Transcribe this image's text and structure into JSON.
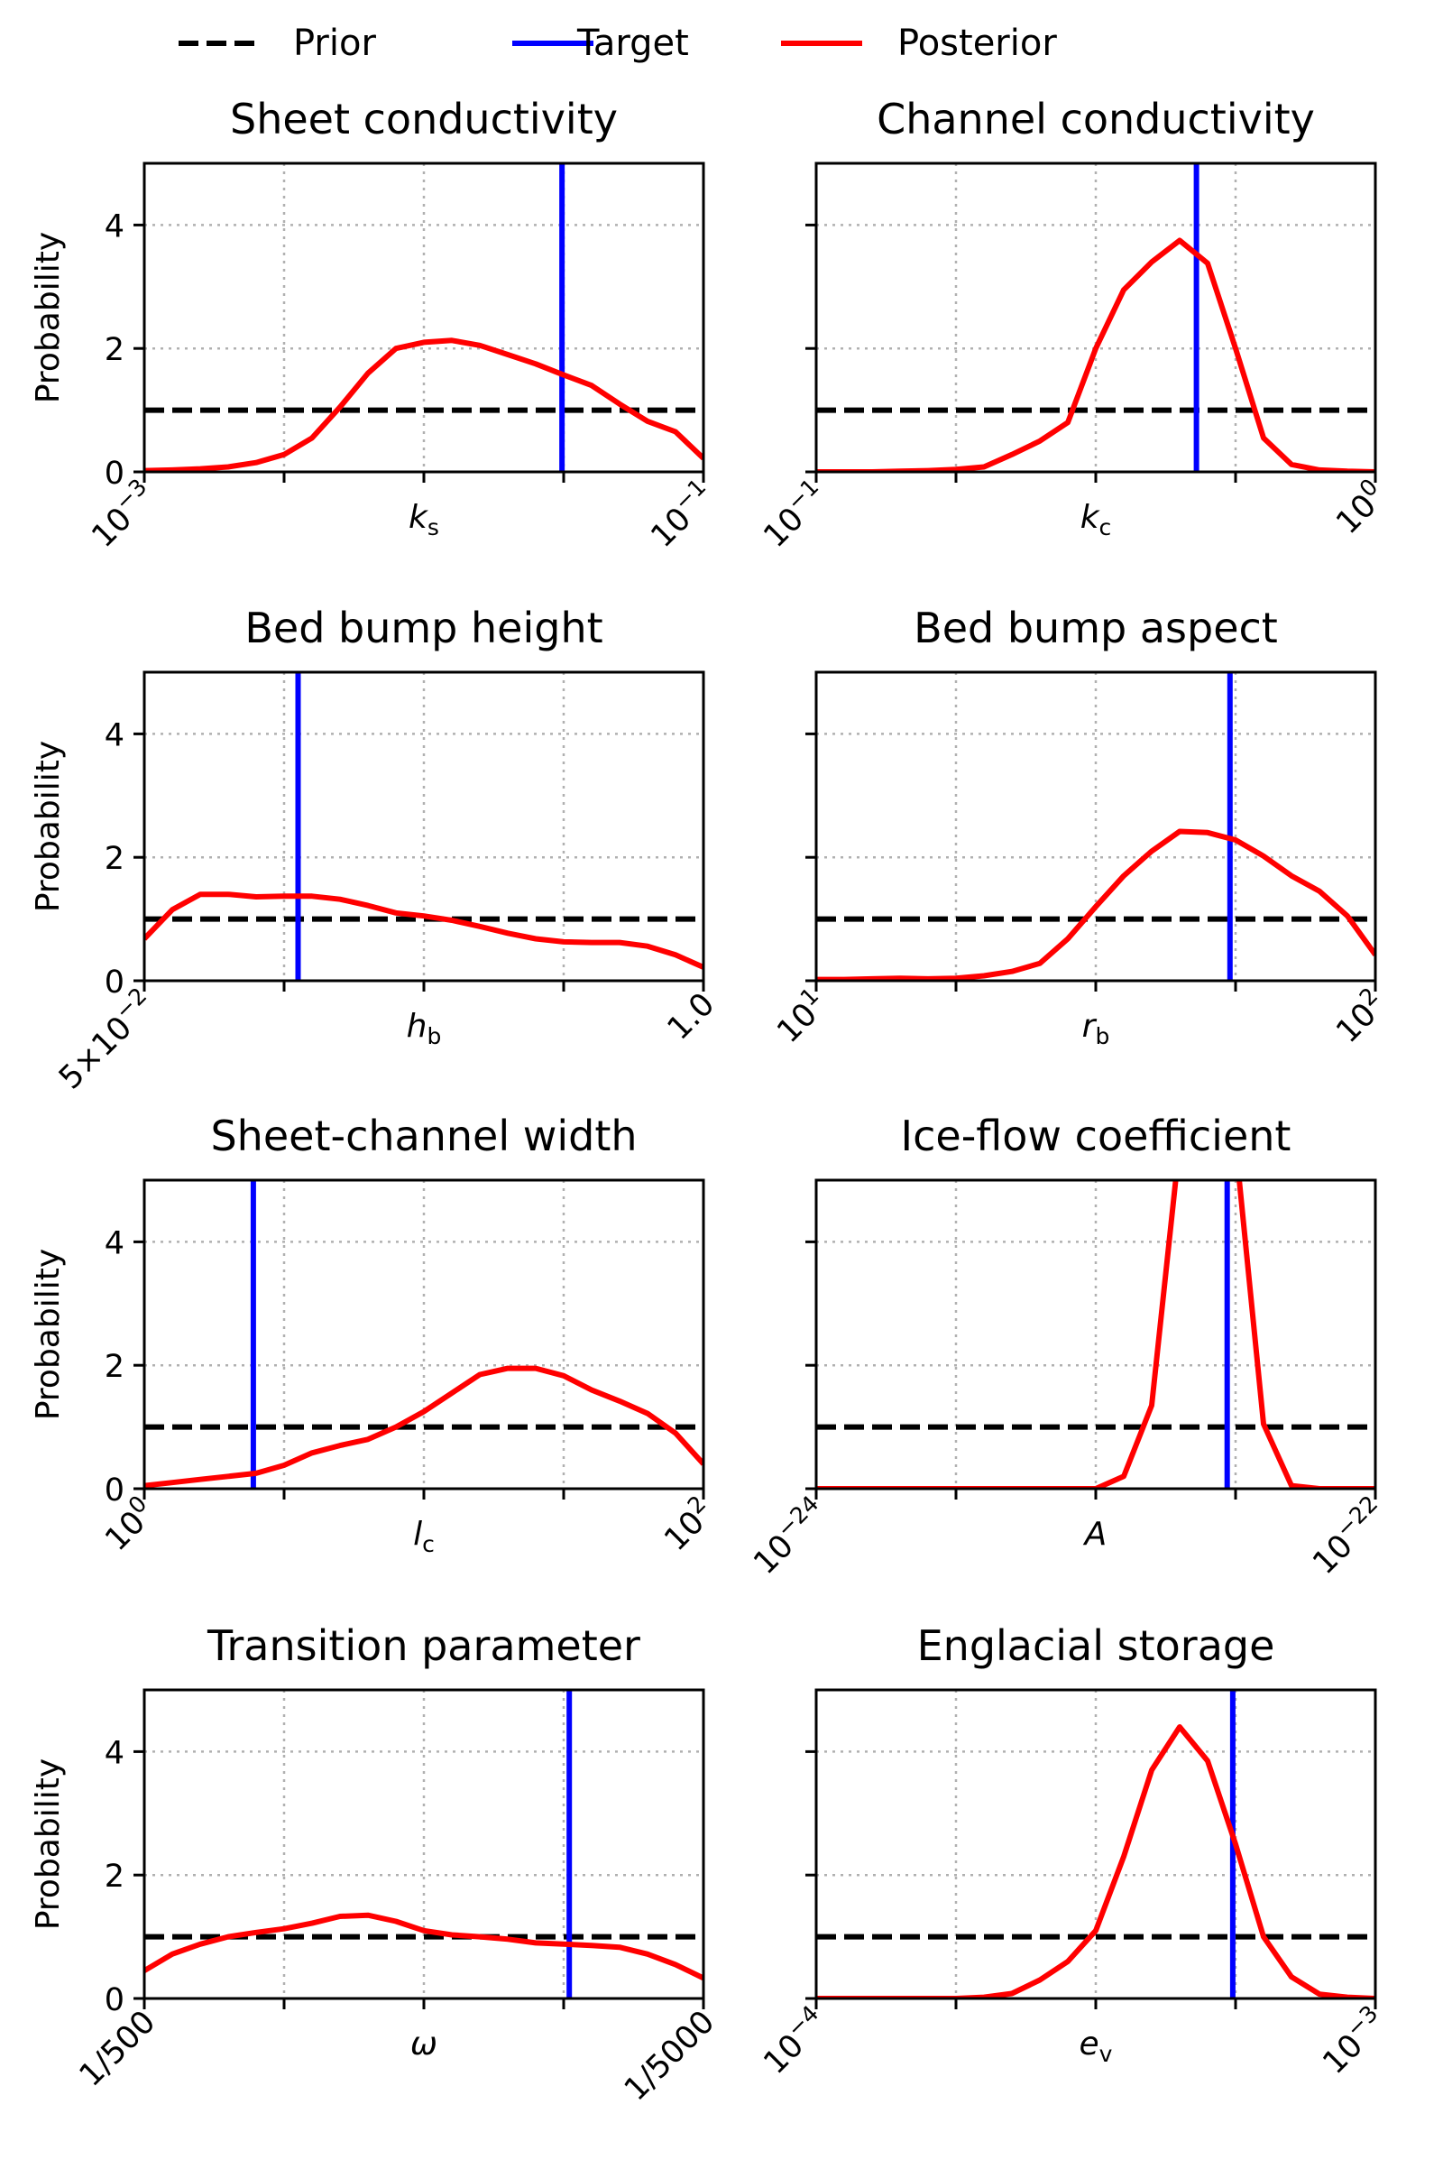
{
  "legend": {
    "items": [
      {
        "label": "Prior",
        "color": "#000000",
        "dash": true
      },
      {
        "label": "Target",
        "color": "#0000ff",
        "dash": false
      },
      {
        "label": "Posterior",
        "color": "#ff0000",
        "dash": false
      }
    ]
  },
  "ylabel": "Probability",
  "chart_data": [
    {
      "type": "line",
      "title": "Sheet conductivity",
      "xlabel": "k",
      "xlabel_sub": "s",
      "xticklabels": [
        {
          "base": "10",
          "exp": "−3"
        },
        {
          "base": "10",
          "exp": "−1"
        }
      ],
      "ylim": [
        0,
        5
      ],
      "yticks": [
        0,
        2,
        4
      ],
      "x_range": [
        0,
        1
      ],
      "prior": 1.0,
      "target": 0.747,
      "posterior_x": [
        0,
        0.05,
        0.1,
        0.15,
        0.2,
        0.25,
        0.3,
        0.35,
        0.4,
        0.45,
        0.5,
        0.55,
        0.6,
        0.65,
        0.7,
        0.75,
        0.8,
        0.85,
        0.9,
        0.95,
        1.0
      ],
      "posterior_y": [
        0.02,
        0.03,
        0.05,
        0.08,
        0.15,
        0.28,
        0.55,
        1.05,
        1.6,
        2.0,
        2.1,
        2.13,
        2.05,
        1.9,
        1.75,
        1.57,
        1.4,
        1.1,
        0.82,
        0.65,
        0.22
      ]
    },
    {
      "type": "line",
      "title": "Channel conductivity",
      "xlabel": "k",
      "xlabel_sub": "c",
      "xticklabels": [
        {
          "base": "10",
          "exp": "−1"
        },
        {
          "base": "10",
          "exp": "0"
        }
      ],
      "ylim": [
        0,
        5
      ],
      "yticks": [
        0,
        2,
        4
      ],
      "x_range": [
        0,
        1
      ],
      "prior": 1.0,
      "target": 0.68,
      "posterior_x": [
        0,
        0.05,
        0.1,
        0.15,
        0.2,
        0.25,
        0.3,
        0.35,
        0.4,
        0.45,
        0.5,
        0.55,
        0.6,
        0.65,
        0.7,
        0.75,
        0.8,
        0.85,
        0.9,
        0.95,
        1.0
      ],
      "posterior_y": [
        0.0,
        0.0,
        0.0,
        0.01,
        0.02,
        0.04,
        0.08,
        0.28,
        0.5,
        0.8,
        2.0,
        2.95,
        3.4,
        3.75,
        3.38,
        2.0,
        0.55,
        0.12,
        0.03,
        0.01,
        0.0
      ]
    },
    {
      "type": "line",
      "title": "Bed bump height",
      "xlabel": "h",
      "xlabel_sub": "b",
      "xticklabels": [
        {
          "base": "5×10",
          "exp": "−2"
        },
        {
          "base": "1.0",
          "exp": ""
        }
      ],
      "ylim": [
        0,
        5
      ],
      "yticks": [
        0,
        2,
        4
      ],
      "x_range": [
        0,
        1
      ],
      "prior": 1.0,
      "target": 0.275,
      "posterior_x": [
        0,
        0.05,
        0.1,
        0.15,
        0.2,
        0.25,
        0.3,
        0.35,
        0.4,
        0.45,
        0.5,
        0.55,
        0.6,
        0.65,
        0.7,
        0.75,
        0.8,
        0.85,
        0.9,
        0.95,
        1.0
      ],
      "posterior_y": [
        0.68,
        1.15,
        1.4,
        1.4,
        1.36,
        1.37,
        1.37,
        1.32,
        1.22,
        1.1,
        1.05,
        0.98,
        0.88,
        0.77,
        0.68,
        0.63,
        0.62,
        0.62,
        0.56,
        0.42,
        0.22
      ]
    },
    {
      "type": "line",
      "title": "Bed bump aspect",
      "xlabel": "r",
      "xlabel_sub": "b",
      "xticklabels": [
        {
          "base": "10",
          "exp": "1"
        },
        {
          "base": "10",
          "exp": "2"
        }
      ],
      "ylim": [
        0,
        5
      ],
      "yticks": [
        0,
        2,
        4
      ],
      "x_range": [
        0,
        1
      ],
      "prior": 1.0,
      "target": 0.74,
      "posterior_x": [
        0,
        0.05,
        0.1,
        0.15,
        0.2,
        0.25,
        0.3,
        0.35,
        0.4,
        0.45,
        0.5,
        0.55,
        0.6,
        0.65,
        0.7,
        0.75,
        0.8,
        0.85,
        0.9,
        0.95,
        1.0
      ],
      "posterior_y": [
        0.02,
        0.02,
        0.03,
        0.04,
        0.03,
        0.04,
        0.08,
        0.15,
        0.28,
        0.68,
        1.2,
        1.7,
        2.1,
        2.42,
        2.4,
        2.28,
        2.02,
        1.7,
        1.45,
        1.05,
        0.42
      ]
    },
    {
      "type": "line",
      "title": "Sheet-channel width",
      "xlabel": "l",
      "xlabel_sub": "c",
      "xticklabels": [
        {
          "base": "10",
          "exp": "0"
        },
        {
          "base": "10",
          "exp": "2"
        }
      ],
      "ylim": [
        0,
        5
      ],
      "yticks": [
        0,
        2,
        4
      ],
      "x_range": [
        0,
        1
      ],
      "prior": 1.0,
      "target": 0.195,
      "posterior_x": [
        0,
        0.05,
        0.1,
        0.15,
        0.2,
        0.25,
        0.3,
        0.35,
        0.4,
        0.45,
        0.5,
        0.55,
        0.6,
        0.65,
        0.7,
        0.75,
        0.8,
        0.85,
        0.9,
        0.95,
        1.0
      ],
      "posterior_y": [
        0.05,
        0.1,
        0.15,
        0.2,
        0.25,
        0.38,
        0.58,
        0.7,
        0.8,
        1.0,
        1.25,
        1.55,
        1.85,
        1.95,
        1.95,
        1.83,
        1.6,
        1.42,
        1.22,
        0.9,
        0.4
      ]
    },
    {
      "type": "line",
      "title": "Ice-flow coefficient",
      "xlabel": "A",
      "xlabel_sub": "",
      "xticklabels": [
        {
          "base": "10",
          "exp": "−24"
        },
        {
          "base": "10",
          "exp": "−22"
        }
      ],
      "ylim": [
        0,
        5
      ],
      "yticks": [
        0,
        2,
        4
      ],
      "x_range": [
        0,
        1
      ],
      "prior": 1.0,
      "target": 0.735,
      "posterior_x": [
        0,
        0.05,
        0.1,
        0.15,
        0.2,
        0.25,
        0.3,
        0.35,
        0.4,
        0.45,
        0.5,
        0.55,
        0.6,
        0.65,
        0.7,
        0.75,
        0.8,
        0.85,
        0.9,
        0.95,
        1.0
      ],
      "posterior_y": [
        0.0,
        0.0,
        0.0,
        0.0,
        0.0,
        0.0,
        0.0,
        0.0,
        0.0,
        0.0,
        0.0,
        0.2,
        1.35,
        5.6,
        7.0,
        5.6,
        1.05,
        0.05,
        0.0,
        0.0,
        0.0
      ]
    },
    {
      "type": "line",
      "title": "Transition parameter",
      "xlabel": "ω",
      "xlabel_sub": "",
      "xticklabels": [
        {
          "base": "1/500",
          "exp": ""
        },
        {
          "base": "1/5000",
          "exp": ""
        }
      ],
      "ylim": [
        0,
        5
      ],
      "yticks": [
        0,
        2,
        4
      ],
      "x_range": [
        0,
        1
      ],
      "prior": 1.0,
      "target": 0.76,
      "posterior_x": [
        0,
        0.05,
        0.1,
        0.15,
        0.2,
        0.25,
        0.3,
        0.35,
        0.4,
        0.45,
        0.5,
        0.55,
        0.6,
        0.65,
        0.7,
        0.75,
        0.8,
        0.85,
        0.9,
        0.95,
        1.0
      ],
      "posterior_y": [
        0.45,
        0.72,
        0.88,
        1.0,
        1.07,
        1.13,
        1.22,
        1.33,
        1.35,
        1.25,
        1.1,
        1.03,
        1.0,
        0.96,
        0.9,
        0.88,
        0.86,
        0.83,
        0.72,
        0.55,
        0.33
      ]
    },
    {
      "type": "line",
      "title": "Englacial storage",
      "xlabel": "e",
      "xlabel_sub": "v",
      "xticklabels": [
        {
          "base": "10",
          "exp": "−4"
        },
        {
          "base": "10",
          "exp": "−3"
        }
      ],
      "ylim": [
        0,
        5
      ],
      "yticks": [
        0,
        2,
        4
      ],
      "x_range": [
        0,
        1
      ],
      "prior": 1.0,
      "target": 0.745,
      "posterior_x": [
        0,
        0.05,
        0.1,
        0.15,
        0.2,
        0.25,
        0.3,
        0.35,
        0.4,
        0.45,
        0.5,
        0.55,
        0.6,
        0.65,
        0.7,
        0.75,
        0.8,
        0.85,
        0.9,
        0.95,
        1.0
      ],
      "posterior_y": [
        0.0,
        0.0,
        0.0,
        0.0,
        0.0,
        0.0,
        0.02,
        0.08,
        0.3,
        0.6,
        1.1,
        2.3,
        3.7,
        4.4,
        3.85,
        2.5,
        1.0,
        0.35,
        0.07,
        0.02,
        0.0
      ]
    }
  ]
}
